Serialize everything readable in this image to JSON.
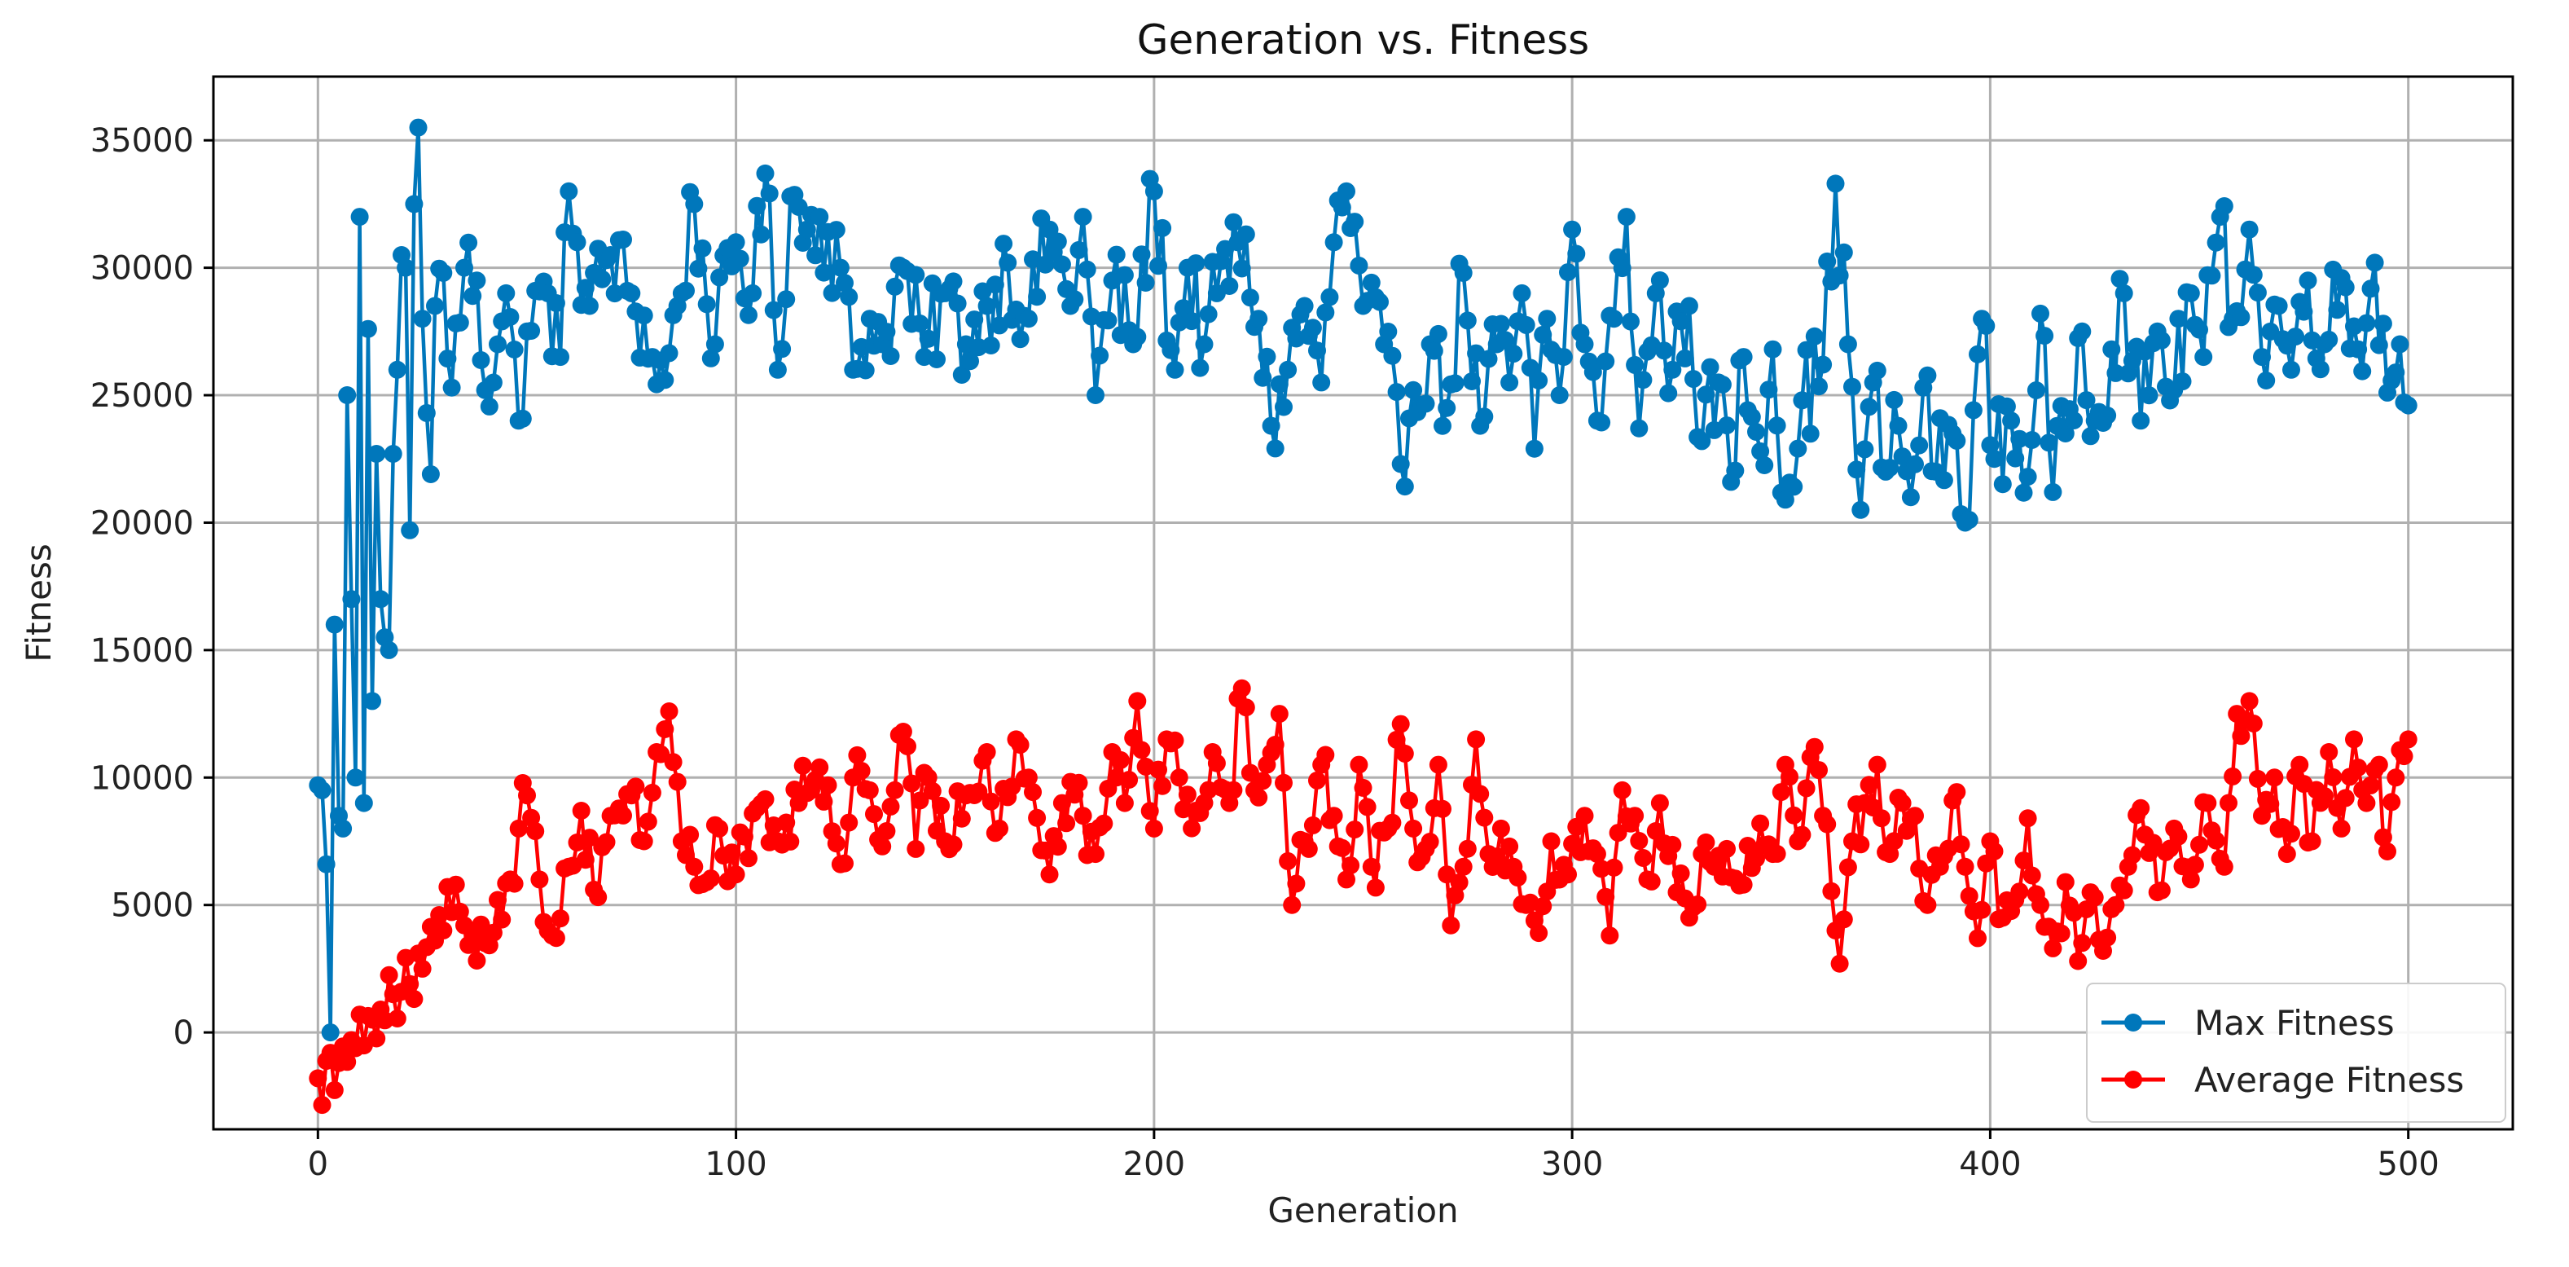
{
  "chart_data": {
    "type": "line",
    "title": "Generation vs. Fitness",
    "xlabel": "Generation",
    "ylabel": "Fitness",
    "xlim": [
      -25,
      525
    ],
    "ylim": [
      -3800,
      37500
    ],
    "xticks": [
      0,
      100,
      200,
      300,
      400,
      500
    ],
    "yticks": [
      0,
      5000,
      10000,
      15000,
      20000,
      25000,
      30000,
      35000
    ],
    "grid": true,
    "legend_position": "bottom-right",
    "colors": {
      "max": "#0077bb",
      "avg": "#ff0000",
      "grid": "#b0b0b0",
      "axis": "#000000"
    },
    "series": [
      {
        "name": "Max Fitness",
        "color": "#0077bb",
        "marker": "circle",
        "anchors": [
          [
            0,
            9700
          ],
          [
            1,
            9500
          ],
          [
            2,
            6600
          ],
          [
            3,
            0
          ],
          [
            4,
            16000
          ],
          [
            5,
            8500
          ],
          [
            6,
            8000
          ],
          [
            7,
            25000
          ],
          [
            8,
            17000
          ],
          [
            9,
            10000
          ],
          [
            10,
            32000
          ],
          [
            11,
            9000
          ],
          [
            12,
            27600
          ],
          [
            13,
            13000
          ],
          [
            14,
            22700
          ],
          [
            15,
            17000
          ],
          [
            16,
            15500
          ],
          [
            17,
            15000
          ],
          [
            18,
            22700
          ],
          [
            19,
            26000
          ],
          [
            20,
            30500
          ],
          [
            21,
            30000
          ],
          [
            22,
            19700
          ],
          [
            23,
            32500
          ],
          [
            24,
            35500
          ],
          [
            25,
            28000
          ],
          [
            26,
            24300
          ],
          [
            27,
            21900
          ],
          [
            28,
            28500
          ],
          [
            30,
            29800
          ],
          [
            32,
            25300
          ],
          [
            35,
            30000
          ],
          [
            38,
            29500
          ],
          [
            40,
            25200
          ],
          [
            43,
            27000
          ],
          [
            45,
            29000
          ],
          [
            48,
            24000
          ],
          [
            50,
            27500
          ],
          [
            55,
            29000
          ],
          [
            58,
            26500
          ],
          [
            60,
            33000
          ],
          [
            62,
            31000
          ],
          [
            65,
            28500
          ],
          [
            70,
            30500
          ],
          [
            75,
            29000
          ],
          [
            80,
            26500
          ],
          [
            83,
            25600
          ],
          [
            86,
            28500
          ],
          [
            90,
            32500
          ],
          [
            95,
            27000
          ],
          [
            100,
            31000
          ],
          [
            104,
            29000
          ],
          [
            107,
            33700
          ],
          [
            110,
            26000
          ],
          [
            113,
            32800
          ],
          [
            117,
            31500
          ],
          [
            120,
            32000
          ],
          [
            125,
            30000
          ],
          [
            128,
            26000
          ],
          [
            132,
            28000
          ],
          [
            135,
            27000
          ],
          [
            140,
            30000
          ],
          [
            145,
            26500
          ],
          [
            150,
            29000
          ],
          [
            155,
            27000
          ],
          [
            160,
            28500
          ],
          [
            165,
            30200
          ],
          [
            170,
            28000
          ],
          [
            175,
            31500
          ],
          [
            180,
            28500
          ],
          [
            183,
            32000
          ],
          [
            186,
            25000
          ],
          [
            190,
            29500
          ],
          [
            195,
            27000
          ],
          [
            200,
            33000
          ],
          [
            205,
            26000
          ],
          [
            208,
            30000
          ],
          [
            212,
            27000
          ],
          [
            215,
            29000
          ],
          [
            220,
            31000
          ],
          [
            225,
            28000
          ],
          [
            228,
            23800
          ],
          [
            232,
            26000
          ],
          [
            236,
            28500
          ],
          [
            240,
            25500
          ],
          [
            243,
            31000
          ],
          [
            246,
            33000
          ],
          [
            250,
            28500
          ],
          [
            255,
            27000
          ],
          [
            259,
            22300
          ],
          [
            262,
            25200
          ],
          [
            266,
            27000
          ],
          [
            270,
            24500
          ],
          [
            274,
            29800
          ],
          [
            278,
            23800
          ],
          [
            282,
            27000
          ],
          [
            285,
            25500
          ],
          [
            288,
            29000
          ],
          [
            291,
            22900
          ],
          [
            294,
            28000
          ],
          [
            297,
            25000
          ],
          [
            300,
            31500
          ],
          [
            303,
            27000
          ],
          [
            306,
            24000
          ],
          [
            310,
            28000
          ],
          [
            313,
            32000
          ],
          [
            316,
            23700
          ],
          [
            320,
            29000
          ],
          [
            324,
            26000
          ],
          [
            328,
            28500
          ],
          [
            331,
            23200
          ],
          [
            335,
            25500
          ],
          [
            338,
            21600
          ],
          [
            341,
            26500
          ],
          [
            345,
            22800
          ],
          [
            348,
            26800
          ],
          [
            351,
            20900
          ],
          [
            355,
            24800
          ],
          [
            360,
            26200
          ],
          [
            363,
            33300
          ],
          [
            366,
            27000
          ],
          [
            369,
            20500
          ],
          [
            372,
            25500
          ],
          [
            375,
            22000
          ],
          [
            378,
            23800
          ],
          [
            381,
            21000
          ],
          [
            384,
            25300
          ],
          [
            387,
            22000
          ],
          [
            391,
            23500
          ],
          [
            394,
            20000
          ],
          [
            398,
            28000
          ],
          [
            401,
            22500
          ],
          [
            405,
            24000
          ],
          [
            409,
            21800
          ],
          [
            412,
            28200
          ],
          [
            415,
            21200
          ],
          [
            418,
            23500
          ],
          [
            422,
            27500
          ],
          [
            425,
            24000
          ],
          [
            429,
            26800
          ],
          [
            432,
            29000
          ],
          [
            436,
            24000
          ],
          [
            440,
            27500
          ],
          [
            444,
            25200
          ],
          [
            448,
            29000
          ],
          [
            451,
            26500
          ],
          [
            455,
            32000
          ],
          [
            458,
            28000
          ],
          [
            462,
            31500
          ],
          [
            465,
            26500
          ],
          [
            469,
            28500
          ],
          [
            472,
            26000
          ],
          [
            476,
            29500
          ],
          [
            480,
            27000
          ],
          [
            484,
            29600
          ],
          [
            488,
            26800
          ],
          [
            492,
            30200
          ],
          [
            495,
            25100
          ],
          [
            498,
            27000
          ],
          [
            500,
            24600
          ]
        ]
      },
      {
        "name": "Average Fitness",
        "color": "#ff0000",
        "marker": "circle",
        "anchors": [
          [
            0,
            -1800
          ],
          [
            5,
            -1200
          ],
          [
            8,
            -300
          ],
          [
            10,
            700
          ],
          [
            13,
            500
          ],
          [
            15,
            900
          ],
          [
            18,
            1500
          ],
          [
            20,
            1600
          ],
          [
            22,
            1900
          ],
          [
            25,
            2500
          ],
          [
            28,
            3600
          ],
          [
            30,
            4000
          ],
          [
            33,
            5800
          ],
          [
            35,
            4200
          ],
          [
            40,
            3500
          ],
          [
            43,
            5200
          ],
          [
            46,
            6000
          ],
          [
            48,
            8000
          ],
          [
            50,
            9300
          ],
          [
            53,
            6000
          ],
          [
            56,
            3800
          ],
          [
            60,
            6500
          ],
          [
            63,
            8700
          ],
          [
            66,
            5600
          ],
          [
            70,
            8500
          ],
          [
            75,
            9300
          ],
          [
            78,
            7500
          ],
          [
            81,
            11000
          ],
          [
            84,
            12600
          ],
          [
            87,
            7500
          ],
          [
            90,
            6500
          ],
          [
            93,
            5900
          ],
          [
            96,
            8000
          ],
          [
            100,
            6200
          ],
          [
            105,
            8800
          ],
          [
            110,
            7500
          ],
          [
            115,
            9000
          ],
          [
            120,
            10400
          ],
          [
            125,
            6600
          ],
          [
            128,
            10000
          ],
          [
            132,
            9500
          ],
          [
            135,
            7300
          ],
          [
            140,
            11800
          ],
          [
            143,
            7200
          ],
          [
            146,
            10000
          ],
          [
            150,
            7500
          ],
          [
            155,
            9300
          ],
          [
            160,
            11000
          ],
          [
            163,
            8000
          ],
          [
            167,
            11500
          ],
          [
            170,
            10000
          ],
          [
            175,
            6200
          ],
          [
            178,
            9000
          ],
          [
            183,
            8500
          ],
          [
            186,
            7000
          ],
          [
            190,
            11000
          ],
          [
            193,
            9000
          ],
          [
            196,
            13000
          ],
          [
            200,
            8000
          ],
          [
            203,
            11500
          ],
          [
            206,
            10000
          ],
          [
            210,
            8700
          ],
          [
            214,
            11000
          ],
          [
            218,
            9000
          ],
          [
            221,
            13500
          ],
          [
            224,
            9500
          ],
          [
            227,
            10500
          ],
          [
            230,
            12500
          ],
          [
            233,
            5000
          ],
          [
            236,
            7500
          ],
          [
            240,
            10500
          ],
          [
            243,
            8500
          ],
          [
            246,
            6000
          ],
          [
            249,
            10500
          ],
          [
            252,
            6500
          ],
          [
            256,
            8000
          ],
          [
            259,
            12100
          ],
          [
            262,
            8000
          ],
          [
            265,
            7200
          ],
          [
            268,
            10500
          ],
          [
            271,
            4200
          ],
          [
            274,
            6500
          ],
          [
            277,
            11500
          ],
          [
            280,
            7000
          ],
          [
            283,
            8000
          ],
          [
            286,
            6500
          ],
          [
            289,
            5000
          ],
          [
            292,
            3900
          ],
          [
            295,
            7500
          ],
          [
            299,
            6200
          ],
          [
            303,
            8500
          ],
          [
            306,
            7000
          ],
          [
            309,
            3800
          ],
          [
            312,
            9500
          ],
          [
            315,
            8500
          ],
          [
            318,
            6000
          ],
          [
            321,
            9000
          ],
          [
            325,
            5500
          ],
          [
            328,
            4500
          ],
          [
            331,
            7000
          ],
          [
            334,
            6500
          ],
          [
            337,
            7200
          ],
          [
            341,
            5800
          ],
          [
            345,
            8200
          ],
          [
            348,
            7000
          ],
          [
            351,
            10500
          ],
          [
            354,
            7500
          ],
          [
            357,
            10800
          ],
          [
            360,
            8500
          ],
          [
            363,
            4000
          ],
          [
            364,
            2700
          ],
          [
            367,
            7500
          ],
          [
            370,
            9000
          ],
          [
            373,
            10500
          ],
          [
            376,
            7000
          ],
          [
            379,
            9000
          ],
          [
            382,
            8500
          ],
          [
            385,
            5000
          ],
          [
            388,
            6500
          ],
          [
            391,
            9100
          ],
          [
            394,
            6500
          ],
          [
            397,
            3700
          ],
          [
            400,
            7500
          ],
          [
            403,
            4500
          ],
          [
            406,
            5200
          ],
          [
            409,
            8400
          ],
          [
            412,
            5000
          ],
          [
            415,
            3300
          ],
          [
            418,
            5900
          ],
          [
            421,
            2800
          ],
          [
            424,
            5500
          ],
          [
            427,
            3200
          ],
          [
            430,
            5000
          ],
          [
            433,
            6500
          ],
          [
            436,
            8800
          ],
          [
            440,
            5500
          ],
          [
            444,
            8000
          ],
          [
            448,
            6000
          ],
          [
            452,
            9000
          ],
          [
            456,
            6500
          ],
          [
            459,
            12500
          ],
          [
            462,
            13000
          ],
          [
            465,
            8500
          ],
          [
            468,
            10000
          ],
          [
            471,
            7000
          ],
          [
            474,
            10500
          ],
          [
            477,
            7500
          ],
          [
            481,
            11000
          ],
          [
            484,
            8000
          ],
          [
            487,
            11500
          ],
          [
            490,
            9000
          ],
          [
            493,
            10500
          ],
          [
            495,
            7100
          ],
          [
            497,
            10000
          ],
          [
            500,
            11500
          ]
        ]
      }
    ]
  }
}
